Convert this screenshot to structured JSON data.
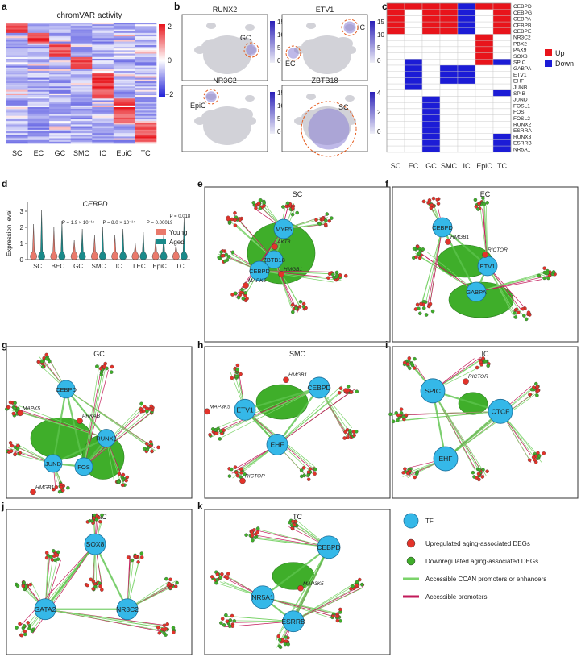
{
  "panel_labels": [
    "a",
    "b",
    "c",
    "d",
    "e",
    "f",
    "g",
    "h",
    "i",
    "j",
    "k"
  ],
  "panel_a": {
    "title": "chromVAR activity",
    "columns": [
      "SC",
      "EC",
      "GC",
      "SMC",
      "IC",
      "EpiC",
      "TC"
    ],
    "colorbar_ticks": [
      "2",
      "0",
      "−2"
    ]
  },
  "panel_b": {
    "plots": [
      {
        "gene": "RUNX2",
        "cell": "GC",
        "ticks": [
          "15",
          "10",
          "5",
          "0"
        ]
      },
      {
        "gene": "ETV1",
        "cell": "IC",
        "cell2": "EC",
        "ticks": [
          "15",
          "10",
          "5",
          "0"
        ]
      },
      {
        "gene": "NR3C2",
        "cell": "EpiC",
        "ticks": [
          "15",
          "10",
          "5",
          "0"
        ]
      },
      {
        "gene": "ZBTB18",
        "cell": "SC",
        "ticks": [
          "4",
          "2",
          "0"
        ]
      }
    ]
  },
  "panel_c": {
    "columns": [
      "SC",
      "EC",
      "GC",
      "SMC",
      "IC",
      "EpiC",
      "TC"
    ],
    "rows": [
      "CEBPD",
      "CEBPG",
      "CEBPA",
      "CEBPB",
      "CEBPE",
      "NR3C2",
      "PBX2",
      "PAX9",
      "SOX8",
      "SPIC",
      "GABPA",
      "ETV1",
      "EHF",
      "JUNB",
      "SPIB",
      "JUND",
      "FOSL1",
      "FOS",
      "FOSL2",
      "RUNX2",
      "ESRRA",
      "RUNX3",
      "ESRRB",
      "NR5A1"
    ],
    "legend": [
      {
        "label": "Up",
        "color": "#e8141b"
      },
      {
        "label": "Down",
        "color": "#1c1cd6"
      }
    ],
    "grid": [
      [
        1,
        1,
        1,
        1,
        -1,
        1,
        1
      ],
      [
        1,
        0,
        1,
        1,
        -1,
        0,
        1
      ],
      [
        1,
        0,
        1,
        1,
        -1,
        0,
        1
      ],
      [
        1,
        0,
        1,
        1,
        -1,
        0,
        1
      ],
      [
        1,
        0,
        1,
        1,
        -1,
        0,
        1
      ],
      [
        0,
        0,
        0,
        0,
        0,
        1,
        0
      ],
      [
        0,
        0,
        0,
        0,
        0,
        1,
        0
      ],
      [
        0,
        0,
        0,
        0,
        0,
        1,
        0
      ],
      [
        0,
        0,
        0,
        0,
        0,
        1,
        0
      ],
      [
        0,
        -1,
        0,
        0,
        0,
        1,
        -1
      ],
      [
        0,
        -1,
        0,
        -1,
        -1,
        0,
        0
      ],
      [
        0,
        -1,
        0,
        -1,
        -1,
        0,
        0
      ],
      [
        0,
        -1,
        0,
        -1,
        -1,
        0,
        0
      ],
      [
        0,
        -1,
        0,
        0,
        0,
        0,
        0
      ],
      [
        0,
        0,
        0,
        0,
        0,
        0,
        -1
      ],
      [
        0,
        0,
        -1,
        0,
        0,
        0,
        0
      ],
      [
        0,
        0,
        -1,
        0,
        0,
        0,
        0
      ],
      [
        0,
        0,
        -1,
        0,
        0,
        0,
        0
      ],
      [
        0,
        0,
        -1,
        0,
        0,
        0,
        0
      ],
      [
        0,
        0,
        -1,
        0,
        0,
        0,
        0
      ],
      [
        0,
        0,
        -1,
        0,
        0,
        0,
        0
      ],
      [
        0,
        0,
        -1,
        0,
        0,
        0,
        -1
      ],
      [
        0,
        0,
        -1,
        0,
        0,
        0,
        -1
      ],
      [
        0,
        0,
        -1,
        0,
        0,
        0,
        -1
      ]
    ]
  },
  "chart_data": {
    "type": "violin",
    "title": "CEBPD",
    "ylabel": "Expression level",
    "categories": [
      "SC",
      "BEC",
      "GC",
      "SMC",
      "IC",
      "LEC",
      "EpiC",
      "TC"
    ],
    "yticks": [
      "0",
      "1",
      "2",
      "3"
    ],
    "ylim": [
      0,
      3.3
    ],
    "series": [
      {
        "name": "Young",
        "color": "#e9796b",
        "max": [
          2.2,
          2.0,
          1.2,
          1.5,
          1.5,
          1.0,
          1.3,
          0.9
        ]
      },
      {
        "name": "Aged",
        "color": "#1a8a8a",
        "max": [
          3.1,
          2.4,
          1.9,
          2.0,
          1.9,
          1.7,
          1.6,
          2.6
        ]
      }
    ],
    "annotations": [
      {
        "text": "P = 1.9 × 10⁻¹⁵",
        "category": "GC"
      },
      {
        "text": "P = 8.0 × 10⁻¹⁴",
        "category": "IC"
      },
      {
        "text": "P = 0.00019",
        "category": "EpiC"
      },
      {
        "text": "P = 0.018",
        "category": "TC"
      }
    ]
  },
  "networks": [
    {
      "id": "e",
      "title": "SC",
      "tfs": [
        "MYF5",
        "ZBTB18",
        "CEBPD"
      ],
      "genes": [
        "MAPK5",
        "AKT3",
        "HMGB1"
      ]
    },
    {
      "id": "f",
      "title": "EC",
      "tfs": [
        "CEBPD",
        "ETV1",
        "GABPA"
      ],
      "genes": [
        "HMGB1",
        "RICTOR"
      ]
    },
    {
      "id": "g",
      "title": "GC",
      "tfs": [
        "CEBPD",
        "RUNX2",
        "JUND",
        "FOS"
      ],
      "genes": [
        "MAPK5",
        "PRKAB",
        "HMGB1"
      ]
    },
    {
      "id": "h",
      "title": "SMC",
      "tfs": [
        "ETV1",
        "CEBPD",
        "EHF"
      ],
      "genes": [
        "HMGB1",
        "MAP3K5",
        "RICTOR"
      ]
    },
    {
      "id": "i",
      "title": "IC",
      "tfs": [
        "SPIC",
        "CTCF",
        "EHF"
      ],
      "genes": [
        "RICTOR"
      ]
    },
    {
      "id": "j",
      "title": "EpiC",
      "tfs": [
        "SOX8",
        "GATA2",
        "NR3C2"
      ],
      "genes": []
    },
    {
      "id": "k",
      "title": "TC",
      "tfs": [
        "CEBPD",
        "NR5A1",
        "ESRRB"
      ],
      "genes": [
        "MAP3K5"
      ]
    }
  ],
  "network_legend": [
    {
      "label": "TF",
      "kind": "tf",
      "color": "#35b8e8"
    },
    {
      "label": "Upregulated aging-associated DEGs",
      "kind": "up",
      "color": "#e3332a"
    },
    {
      "label": "Downregulated aging-associated DEGs",
      "kind": "down",
      "color": "#3fae2a"
    },
    {
      "label": "Accessible CCAN promoters or enhancers",
      "kind": "edge",
      "color": "#7bd36a"
    },
    {
      "label": "Accessible promoters",
      "kind": "edge",
      "color": "#c21a5a"
    }
  ]
}
